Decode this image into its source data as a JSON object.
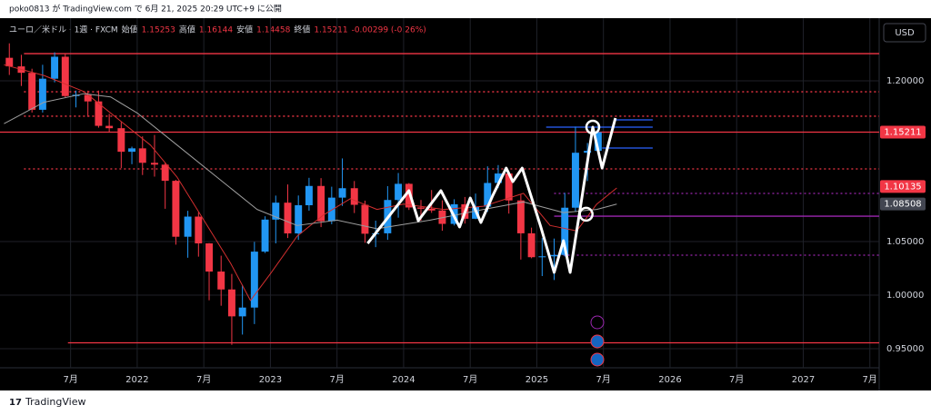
{
  "header": {
    "published": "poko0813 が TradingView.com で 6月 21, 2025 20:29 UTC+9 に公開",
    "symbol": "ユーロ／米ドル · 1週 · FXCM",
    "ohlc": [
      {
        "label": "始値",
        "value": "1.15253"
      },
      {
        "label": "高値",
        "value": "1.16144"
      },
      {
        "label": "安値",
        "value": "1.14458"
      },
      {
        "label": "終値",
        "value": "1.15211"
      }
    ],
    "change": "-0.00299 (-0.26%)"
  },
  "currency": "USD",
  "footer": "TradingView",
  "chart_data": {
    "type": "candlestick",
    "xlim": [
      2020.97,
      2027.57
    ],
    "ylim": [
      0.9322,
      1.2585
    ],
    "xticks": [
      {
        "value": 2021.5,
        "label": "7月"
      },
      2022,
      {
        "value": 2022.5,
        "label": "7月"
      },
      2023,
      {
        "value": 2023.5,
        "label": "7月"
      },
      2024,
      {
        "value": 2024.5,
        "label": "7月"
      },
      2025,
      {
        "value": 2025.5,
        "label": "7月"
      },
      2026,
      {
        "value": 2026.5,
        "label": "7月"
      },
      2027,
      {
        "value": 2027.5,
        "label": "7月"
      }
    ],
    "yticks": [
      {
        "value": 0.95,
        "label": "0.95000"
      },
      {
        "value": 1.0,
        "label": "1.00000"
      },
      {
        "value": 1.05,
        "label": "1.05000"
      },
      {
        "value": 1.2,
        "label": "1.20000"
      }
    ],
    "grid": true,
    "up_color": "#2196f3",
    "down_color": "#f23645",
    "candles": {
      "x": [
        2021.04,
        2021.13,
        2021.21,
        2021.29,
        2021.38,
        2021.46,
        2021.54,
        2021.63,
        2021.71,
        2021.79,
        2021.88,
        2021.96,
        2022.04,
        2022.13,
        2022.21,
        2022.29,
        2022.38,
        2022.46,
        2022.54,
        2022.63,
        2022.71,
        2022.79,
        2022.88,
        2022.96,
        2023.04,
        2023.13,
        2023.21,
        2023.29,
        2023.38,
        2023.46,
        2023.54,
        2023.63,
        2023.71,
        2023.79,
        2023.88,
        2023.96,
        2024.04,
        2024.13,
        2024.21,
        2024.29,
        2024.38,
        2024.46,
        2024.54,
        2024.63,
        2024.71,
        2024.79,
        2024.88,
        2024.96,
        2025.04,
        2025.13,
        2025.21,
        2025.29,
        2025.38,
        2025.46
      ],
      "open": [
        1.2215,
        1.2135,
        1.2075,
        1.173,
        1.202,
        1.2225,
        1.1858,
        1.187,
        1.1808,
        1.158,
        1.1558,
        1.1338,
        1.137,
        1.1235,
        1.1218,
        1.1067,
        1.0545,
        1.0733,
        1.0483,
        1.022,
        1.0053,
        0.9802,
        0.9884,
        1.0406,
        1.0705,
        1.0863,
        1.0576,
        1.0839,
        1.1019,
        1.069,
        1.091,
        1.0998,
        1.0843,
        1.0573,
        1.0577,
        1.0888,
        1.1039,
        1.0818,
        1.0806,
        1.079,
        1.0665,
        1.0848,
        1.0713,
        1.0826,
        1.1047,
        1.1135,
        1.0884,
        1.0577,
        1.0354,
        1.0362,
        1.0375,
        1.0816,
        1.1329,
        1.1347
      ],
      "high": [
        1.235,
        1.2243,
        1.2113,
        1.215,
        1.2266,
        1.2254,
        1.1909,
        1.1908,
        1.1909,
        1.1692,
        1.1616,
        1.1386,
        1.1482,
        1.1495,
        1.1235,
        1.1076,
        1.0787,
        1.0774,
        1.0486,
        1.0368,
        1.0198,
        1.0094,
        1.0497,
        1.0736,
        1.0929,
        1.1033,
        1.093,
        1.1095,
        1.1092,
        1.1012,
        1.1276,
        1.1065,
        1.0882,
        1.0695,
        1.1017,
        1.114,
        1.1046,
        1.0888,
        1.0981,
        1.0885,
        1.0895,
        1.0916,
        1.0948,
        1.1202,
        1.1214,
        1.1144,
        1.0937,
        1.063,
        1.0533,
        1.0528,
        1.0955,
        1.1573,
        1.142,
        1.1614
      ],
      "low": [
        1.2055,
        1.1952,
        1.1704,
        1.1704,
        1.1986,
        1.1847,
        1.1752,
        1.1664,
        1.1563,
        1.1524,
        1.1186,
        1.1222,
        1.1121,
        1.1106,
        1.0806,
        1.0471,
        1.0349,
        1.0359,
        0.9952,
        0.9901,
        0.9536,
        0.9632,
        0.973,
        1.0393,
        1.0483,
        1.0533,
        1.0516,
        1.0788,
        1.0635,
        1.0662,
        1.0833,
        1.0766,
        1.0488,
        1.0448,
        1.0516,
        1.0723,
        1.0795,
        1.0695,
        1.0768,
        1.0601,
        1.065,
        1.0668,
        1.0709,
        1.0777,
        1.0999,
        1.0761,
        1.0332,
        1.0344,
        1.0178,
        1.0141,
        1.036,
        1.0778,
        1.1065,
        1.1372
      ],
      "close": [
        1.2135,
        1.2075,
        1.173,
        1.202,
        1.2225,
        1.1858,
        1.187,
        1.1808,
        1.158,
        1.1558,
        1.1338,
        1.137,
        1.1235,
        1.1218,
        1.1067,
        1.0545,
        1.0733,
        1.0483,
        1.022,
        1.0053,
        0.9802,
        0.9884,
        1.0406,
        1.0705,
        1.0863,
        1.0576,
        1.0839,
        1.1019,
        1.069,
        1.091,
        1.0998,
        1.0843,
        1.0573,
        1.0577,
        1.0888,
        1.1039,
        1.0818,
        1.0806,
        1.079,
        1.0665,
        1.0848,
        1.0713,
        1.0826,
        1.1047,
        1.1135,
        1.0884,
        1.0577,
        1.0354,
        1.0362,
        1.0375,
        1.0816,
        1.1329,
        1.1347,
        1.1521
      ]
    },
    "series": [
      {
        "color": "#d32f2f",
        "width": 1,
        "x": [
          2021.0,
          2021.3,
          2021.6,
          2021.9,
          2022.1,
          2022.3,
          2022.5,
          2022.7,
          2022.85,
          2023.0,
          2023.2,
          2023.4,
          2023.6,
          2023.8,
          2024.0,
          2024.3,
          2024.6,
          2024.9,
          2025.1,
          2025.3,
          2025.45,
          2025.6
        ],
        "values": [
          1.215,
          1.205,
          1.19,
          1.16,
          1.14,
          1.11,
          1.07,
          1.03,
          0.995,
          1.02,
          1.055,
          1.075,
          1.09,
          1.08,
          1.085,
          1.08,
          1.083,
          1.095,
          1.065,
          1.06,
          1.085,
          1.1
        ]
      },
      {
        "color": "#9e9e9e",
        "width": 1,
        "x": [
          2021.0,
          2021.3,
          2021.6,
          2021.8,
          2022.0,
          2022.3,
          2022.6,
          2022.9,
          2023.2,
          2023.5,
          2023.8,
          2024.2,
          2024.6,
          2024.9,
          2025.2,
          2025.45,
          2025.6
        ],
        "values": [
          1.16,
          1.18,
          1.188,
          1.185,
          1.17,
          1.14,
          1.11,
          1.08,
          1.065,
          1.07,
          1.062,
          1.07,
          1.08,
          1.087,
          1.077,
          1.08,
          1.085
        ]
      },
      {
        "color": "#ffffff",
        "width": 3,
        "x": [
          2023.73,
          2024.04,
          2024.11,
          2024.28,
          2024.42,
          2024.5,
          2024.58,
          2024.67,
          2024.77,
          2024.82,
          2024.89,
          2025.03,
          2025.13,
          2025.2,
          2025.25,
          2025.32,
          2025.42,
          2025.49,
          2025.59
        ],
        "values": [
          1.0483,
          1.0975,
          1.0695,
          1.0975,
          1.0636,
          1.0907,
          1.0678,
          1.0932,
          1.1186,
          1.1059,
          1.1186,
          1.0636,
          1.0212,
          1.0508,
          1.0212,
          1.0763,
          1.1568,
          1.1186,
          1.1653
        ]
      }
    ],
    "circles": [
      {
        "x": 2025.42,
        "value": 1.1568
      },
      {
        "x": 2025.37,
        "value": 1.0755
      }
    ],
    "hlines": [
      {
        "value": 1.2254,
        "color": "#f23645",
        "style": "solid",
        "start": 2021.15
      },
      {
        "value": 1.1898,
        "color": "#f23645",
        "style": "dotted",
        "start": 2021.15
      },
      {
        "value": 1.167,
        "color": "#f23645",
        "style": "dotted",
        "start": 2021.15
      },
      {
        "value": 1.15211,
        "color": "#f23645",
        "style": "solid",
        "start": 2020.97
      },
      {
        "value": 1.1178,
        "color": "#f23645",
        "style": "dotted",
        "start": 2021.15
      },
      {
        "value": 0.9555,
        "color": "#f23645",
        "style": "solid",
        "start": 2021.48
      },
      {
        "value": 1.0949,
        "color": "#9c27b0",
        "style": "dotted",
        "start": 2025.13
      },
      {
        "value": 1.0737,
        "color": "#9c27b0",
        "style": "solid",
        "start": 2025.13
      },
      {
        "value": 1.0373,
        "color": "#9c27b0",
        "style": "dotted",
        "start": 2025.13
      },
      {
        "value": 1.1636,
        "color": "#2962ff",
        "style": "solid",
        "start": 2025.59,
        "end": 2025.87
      },
      {
        "value": 1.1568,
        "color": "#2962ff",
        "style": "solid",
        "start": 2025.07,
        "end": 2025.87
      },
      {
        "value": 1.1373,
        "color": "#2962ff",
        "style": "solid",
        "start": 2025.49,
        "end": 2025.87
      }
    ],
    "price_labels": [
      {
        "value": 1.15211,
        "color": "#f23645"
      },
      {
        "value": 1.10135,
        "color": "#f23645"
      },
      {
        "value": 1.08508,
        "color": "#434651"
      }
    ]
  }
}
